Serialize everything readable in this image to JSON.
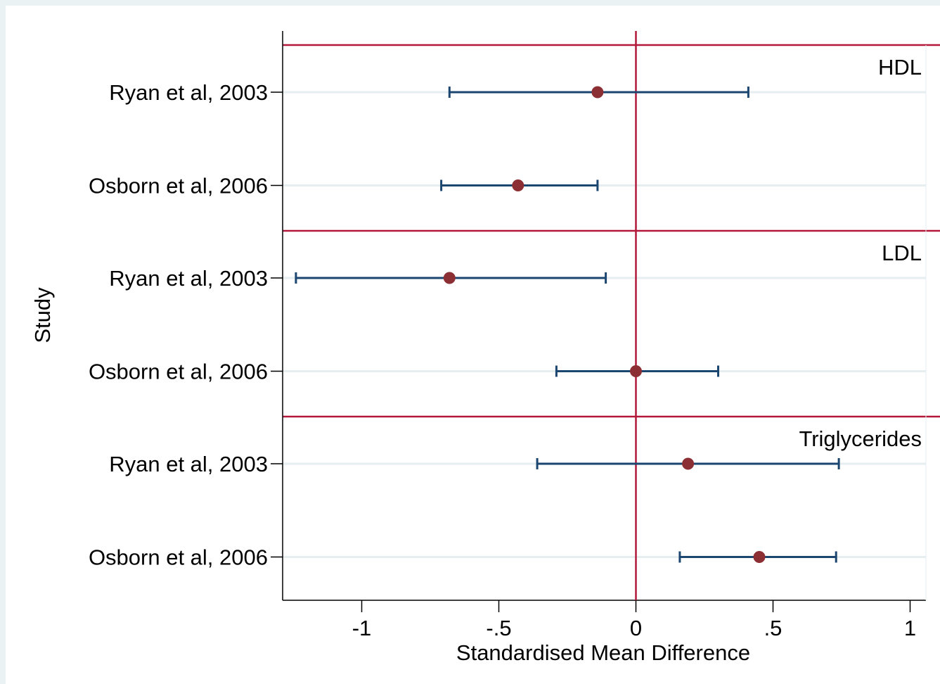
{
  "chart_data": {
    "type": "forest",
    "xlabel": "Standardised Mean Difference",
    "ylabel": "Study",
    "xlim": [
      -1.29,
      1.04
    ],
    "x_ticks": [
      -1,
      -0.5,
      0,
      0.5,
      1
    ],
    "x_tick_labels": [
      "-1",
      "-.5",
      "0",
      ".5",
      "1"
    ],
    "reference_line": 0,
    "grid": true,
    "colors": {
      "panel_background": "#ffffff",
      "outer_background": "#eaf2f3",
      "gridline": "#e6eef0",
      "reference_line": "#b2183a",
      "separator_line": "#b2183a",
      "ci_line": "#1b4670",
      "point": "#8b2f34"
    },
    "groups": [
      {
        "name": "HDL",
        "studies": [
          {
            "label": "Ryan et al, 2003",
            "estimate": -0.14,
            "ci_low": -0.68,
            "ci_high": 0.41
          },
          {
            "label": "Osborn et al, 2006",
            "estimate": -0.43,
            "ci_low": -0.71,
            "ci_high": -0.14
          }
        ]
      },
      {
        "name": "LDL",
        "studies": [
          {
            "label": "Ryan et al, 2003",
            "estimate": -0.68,
            "ci_low": -1.24,
            "ci_high": -0.11
          },
          {
            "label": "Osborn et al, 2006",
            "estimate": 0.0,
            "ci_low": -0.29,
            "ci_high": 0.3
          }
        ]
      },
      {
        "name": "Triglycerides",
        "studies": [
          {
            "label": "Ryan et al, 2003",
            "estimate": 0.19,
            "ci_low": -0.36,
            "ci_high": 0.74
          },
          {
            "label": "Osborn et al, 2006",
            "estimate": 0.45,
            "ci_low": 0.16,
            "ci_high": 0.73
          }
        ]
      }
    ]
  }
}
